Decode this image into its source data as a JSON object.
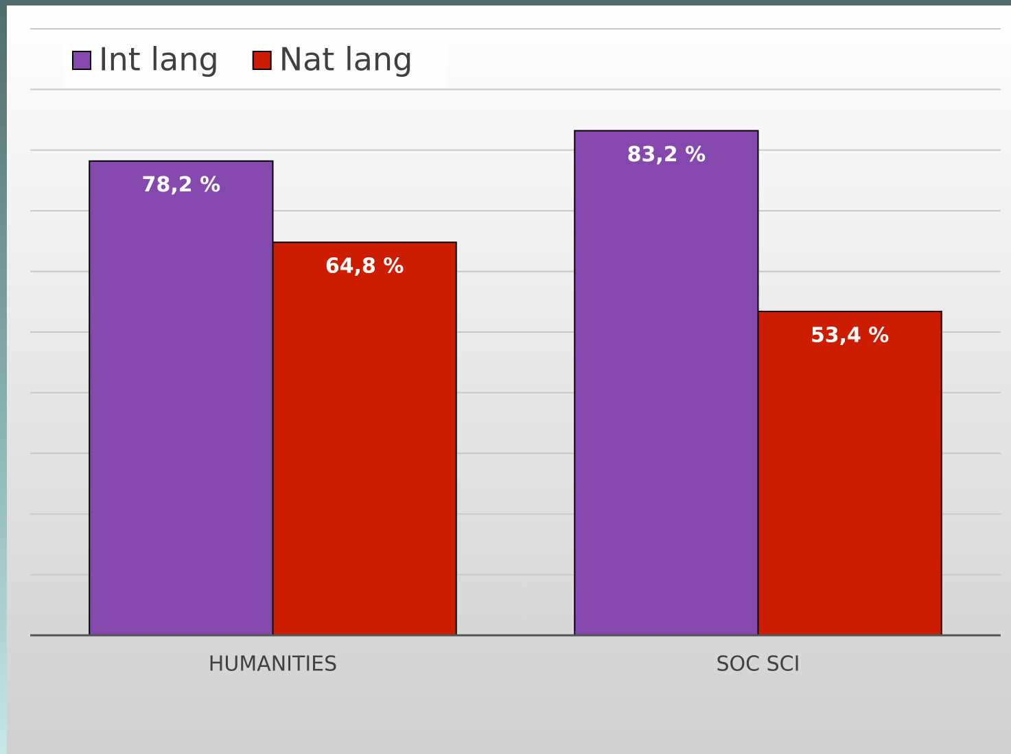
{
  "chart_data": {
    "type": "bar",
    "categories": [
      "HUMANITIES",
      "SOC SCI"
    ],
    "series": [
      {
        "name": "Int lang",
        "color": "#8549ae",
        "values": [
          78.2,
          83.2
        ],
        "value_labels": [
          "78,2 %",
          "83,2 %"
        ]
      },
      {
        "name": "Nat lang",
        "color": "#cc1d00",
        "values": [
          64.8,
          53.4
        ],
        "value_labels": [
          "64,8 %",
          "53,4 %"
        ]
      }
    ],
    "ylim": [
      0,
      100
    ],
    "yticks": [
      0,
      10,
      20,
      30,
      40,
      50,
      60,
      70,
      80,
      90,
      100
    ],
    "grid": true
  }
}
